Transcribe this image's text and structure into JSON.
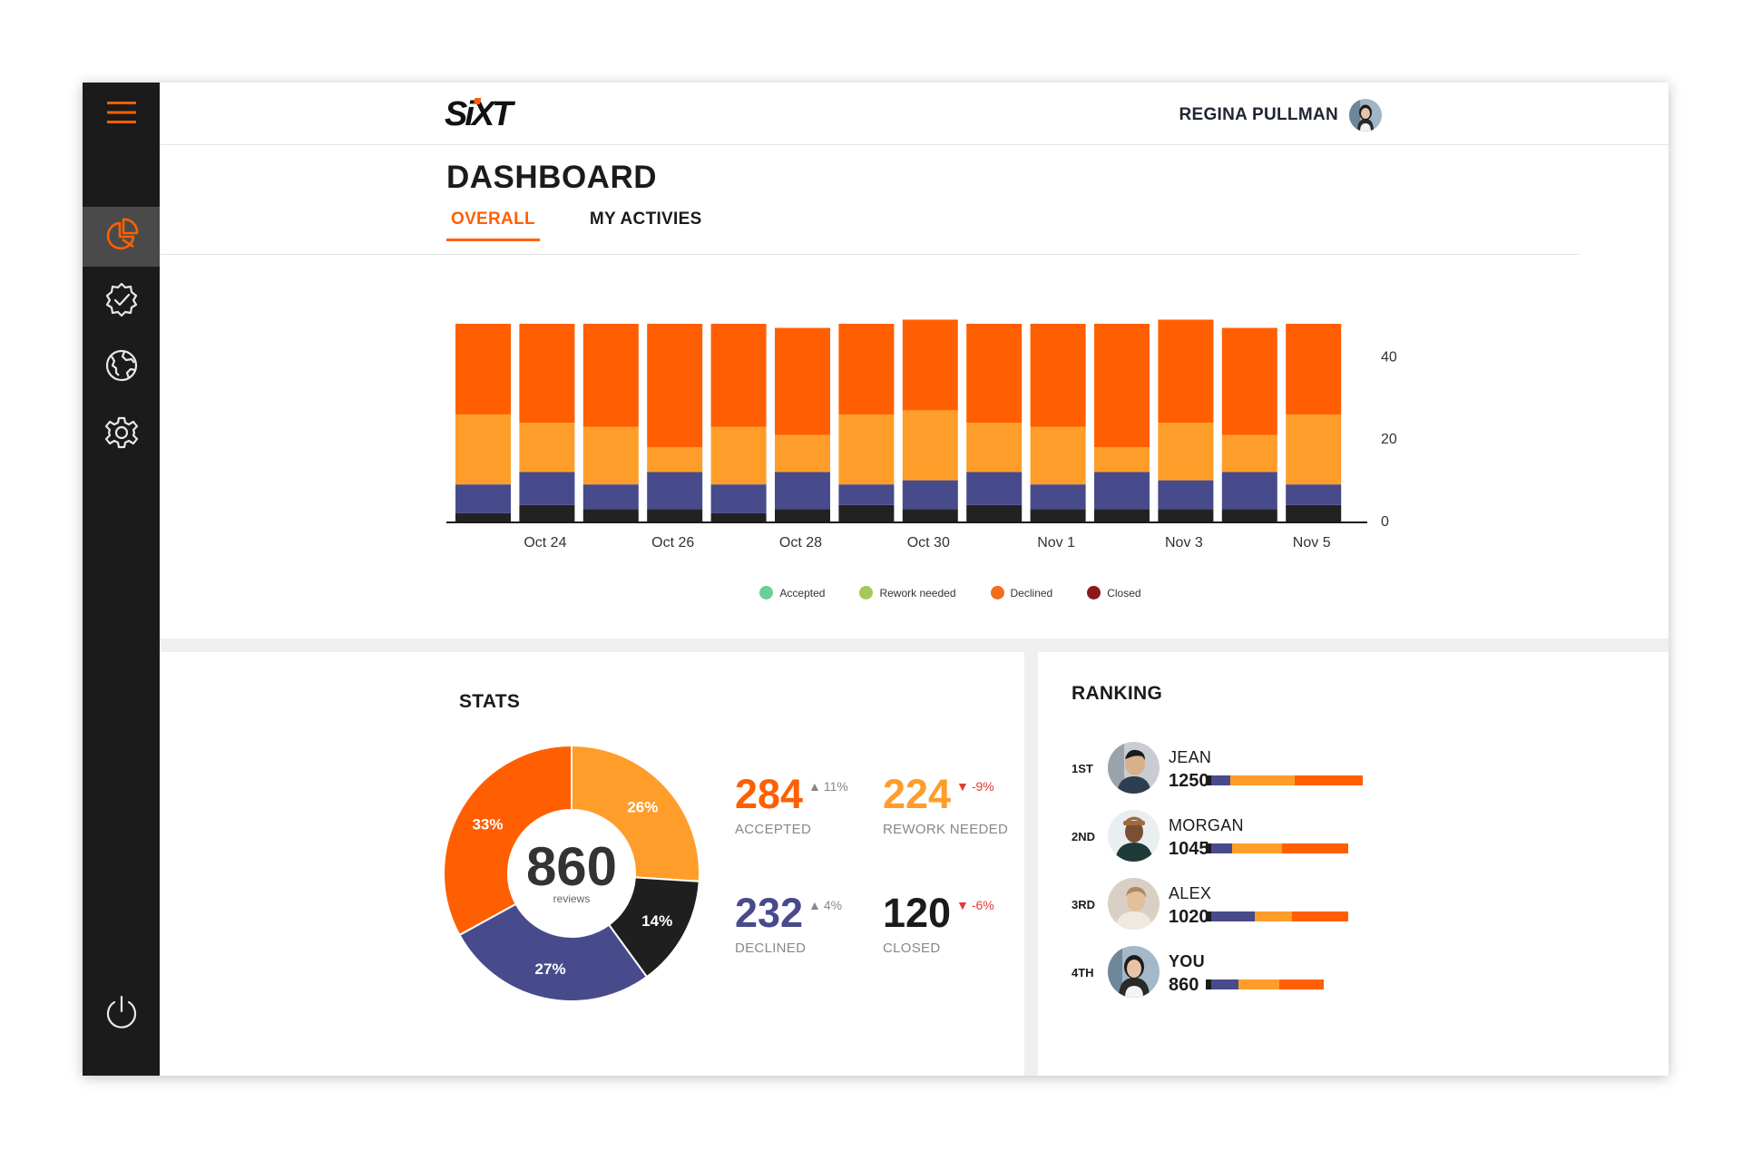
{
  "brand": {
    "logo_text": "SiXT",
    "accent": "#ff5f00"
  },
  "sidebar": {
    "items": [
      {
        "icon": "hamburger-menu-icon"
      },
      {
        "icon": "pie-chart-icon",
        "active": true
      },
      {
        "icon": "verified-badge-icon"
      },
      {
        "icon": "globe-icon"
      },
      {
        "icon": "gear-icon"
      },
      {
        "icon": "power-icon"
      }
    ]
  },
  "header": {
    "user_name": "REGINA PULLMAN"
  },
  "page": {
    "title": "DASHBOARD",
    "tabs": [
      {
        "label": "OVERALL",
        "active": true
      },
      {
        "label": "MY ACTIVIES",
        "active": false
      }
    ]
  },
  "chart_data": {
    "type": "bar",
    "stacked": true,
    "categories": [
      "Oct 23",
      "Oct 24",
      "Oct 25",
      "Oct 26",
      "Oct 27",
      "Oct 28",
      "Oct 29",
      "Oct 30",
      "Oct 31",
      "Nov 1",
      "Nov 2",
      "Nov 3",
      "Nov 4",
      "Nov 5"
    ],
    "tick_labels": [
      "Oct 24",
      "Oct 26",
      "Oct 28",
      "Oct 30",
      "Nov 1",
      "Nov 3",
      "Nov 5"
    ],
    "y_ticks": [
      0,
      20,
      40
    ],
    "ylim": [
      0,
      48
    ],
    "y_axis_side": "right",
    "series": [
      {
        "key": "closed",
        "color": "#222222",
        "values": [
          2,
          4,
          3,
          3,
          2,
          3,
          4,
          3,
          4,
          3,
          3,
          3,
          3,
          4
        ]
      },
      {
        "key": "declined",
        "color": "#474b8c",
        "values": [
          7,
          8,
          6,
          9,
          7,
          9,
          5,
          7,
          8,
          6,
          9,
          7,
          9,
          5
        ]
      },
      {
        "key": "rework",
        "color": "#ff9d2a",
        "values": [
          17,
          12,
          14,
          6,
          14,
          9,
          17,
          17,
          12,
          14,
          6,
          14,
          9,
          17
        ]
      },
      {
        "key": "accepted",
        "color": "#ff5f00",
        "values": [
          22,
          24,
          25,
          30,
          25,
          26,
          22,
          22,
          24,
          25,
          30,
          25,
          26,
          22
        ]
      }
    ]
  },
  "legend": [
    {
      "label": "Accepted",
      "color": "#69cf97"
    },
    {
      "label": "Rework needed",
      "color": "#a6c85a"
    },
    {
      "label": "Declined",
      "color": "#f06e1c"
    },
    {
      "label": "Closed",
      "color": "#8b1a1a"
    }
  ],
  "stats": {
    "title": "STATS",
    "total": "860",
    "total_label": "reviews",
    "donut": [
      {
        "label": "26%",
        "value": 26,
        "color": "#ff9d2a"
      },
      {
        "label": "14%",
        "value": 14,
        "color": "#1f1f1f"
      },
      {
        "label": "27%",
        "value": 27,
        "color": "#474b8c"
      },
      {
        "label": "33%",
        "value": 33,
        "color": "#ff5f00"
      }
    ],
    "cards": [
      {
        "value": "284",
        "label": "ACCEPTED",
        "change": "11%",
        "direction": "up",
        "color": "#ff5f00"
      },
      {
        "value": "224",
        "label": "REWORK NEEDED",
        "change": "-9%",
        "direction": "down",
        "color": "#ff9d2a"
      },
      {
        "value": "232",
        "label": "DECLINED",
        "change": "4%",
        "direction": "up",
        "color": "#474b8c"
      },
      {
        "value": "120",
        "label": "CLOSED",
        "change": "-6%",
        "direction": "down",
        "color": "#1b1b1b"
      }
    ]
  },
  "ranking": {
    "title": "RANKING",
    "rows": [
      {
        "pos": "1ST",
        "name": "JEAN",
        "score": "1250",
        "bar": [
          0.15,
          0.52,
          0.55
        ]
      },
      {
        "pos": "2ND",
        "name": "MORGAN",
        "score": "1045",
        "bar": [
          0.17,
          0.4,
          0.53
        ]
      },
      {
        "pos": "3RD",
        "name": "ALEX",
        "score": "1020",
        "bar": [
          0.35,
          0.3,
          0.45
        ]
      },
      {
        "pos": "4TH",
        "name": "YOU",
        "score": "860",
        "bar": [
          0.22,
          0.33,
          0.36
        ]
      }
    ]
  }
}
